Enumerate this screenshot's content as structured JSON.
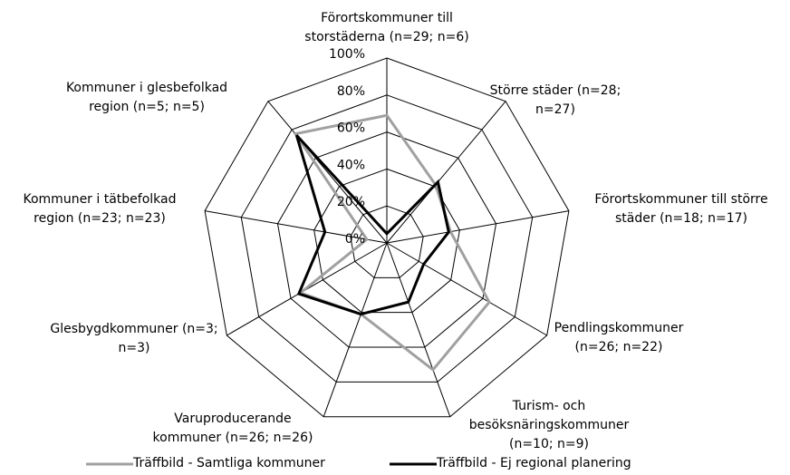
{
  "chart_data": {
    "type": "radar",
    "categories": [
      [
        "Förortskommuner till",
        "storstäderna (n=29; n=6)"
      ],
      [
        "Större städer (n=28;",
        "n=27)"
      ],
      [
        "Förortskommuner till större",
        "städer (n=18; n=17)"
      ],
      [
        "Pendlingskommuner",
        "(n=26; n=22)"
      ],
      [
        "Turism- och",
        "besöksnäringskommuner",
        "(n=10; n=9)"
      ],
      [
        "Varuproducerande",
        "kommuner (n=26; n=26)"
      ],
      [
        "Glesbygdkommuner (n=3;",
        "n=3)"
      ],
      [
        "Kommuner i tätbefolkad",
        "region (n=23; n=23)"
      ],
      [
        "Kommuner i glesbefolkad",
        "region (n=5; n=5)"
      ]
    ],
    "series": [
      {
        "name": "Träffbild - Samtliga kommuner",
        "color": "#a0a0a0",
        "values": [
          69,
          41,
          35,
          64,
          73,
          41,
          54,
          11,
          77
        ]
      },
      {
        "name": "Träffbild - Ej regional planering",
        "color": "#000000",
        "values": [
          5,
          43,
          34,
          23,
          34,
          41,
          55,
          34,
          76
        ]
      }
    ],
    "ylim": [
      0,
      100
    ],
    "yticks": [
      {
        "value": 0,
        "label": "0%"
      },
      {
        "value": 20,
        "label": "20%"
      },
      {
        "value": 40,
        "label": "40%"
      },
      {
        "value": 60,
        "label": "60%"
      },
      {
        "value": 80,
        "label": "80%"
      },
      {
        "value": 100,
        "label": "100%"
      }
    ],
    "grid": true,
    "legend": "bottom"
  }
}
